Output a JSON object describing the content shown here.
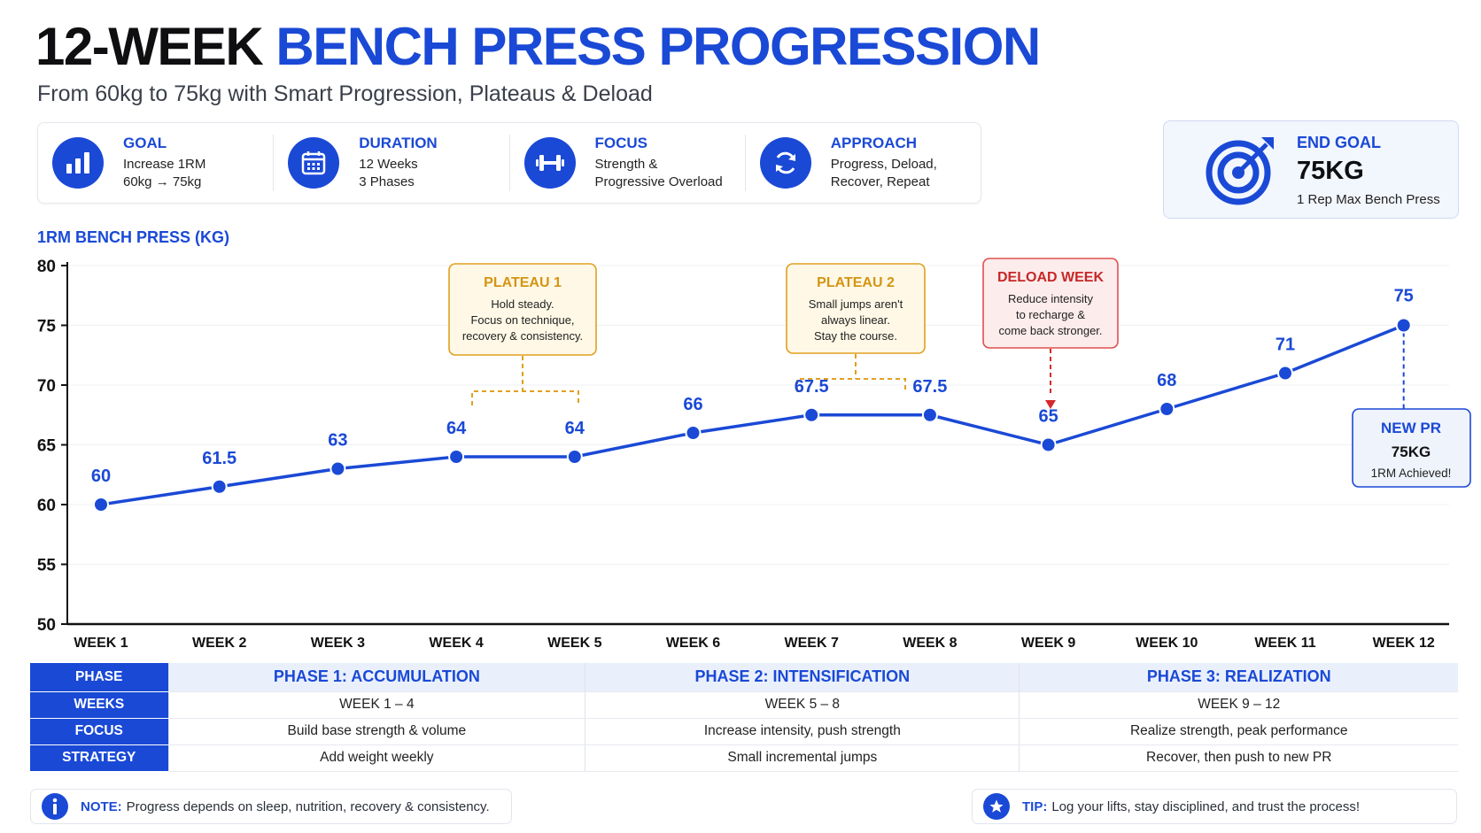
{
  "header": {
    "title_part1": "12-WEEK",
    "title_part2": "BENCH PRESS PROGRESSION",
    "subtitle": "From 60kg to 75kg with Smart Progression, Plateaus & Deload"
  },
  "info": [
    {
      "label": "GOAL",
      "line1": "Increase 1RM",
      "line2": "60kg → 75kg",
      "icon": "bar-chart-icon"
    },
    {
      "label": "DURATION",
      "line1": "12 Weeks",
      "line2": "3 Phases",
      "icon": "calendar-icon"
    },
    {
      "label": "FOCUS",
      "line1": "Strength &",
      "line2": "Progressive Overload",
      "icon": "dumbbell-icon"
    },
    {
      "label": "APPROACH",
      "line1": "Progress, Deload,",
      "line2": "Recover, Repeat",
      "icon": "refresh-icon"
    }
  ],
  "end_goal": {
    "label": "END GOAL",
    "value": "75KG",
    "sub": "1 Rep Max Bench Press",
    "icon": "target-icon"
  },
  "colors": {
    "accent": "#1a49d6",
    "plateau": "#e0a020",
    "deload": "#d52a2a"
  },
  "chart_data": {
    "type": "line",
    "title": "1RM BENCH PRESS (KG)",
    "ylim": [
      50,
      80
    ],
    "yticks": [
      50,
      55,
      60,
      65,
      70,
      75,
      80
    ],
    "grid": true,
    "categories": [
      "WEEK 1",
      "WEEK 2",
      "WEEK 3",
      "WEEK 4",
      "WEEK 5",
      "WEEK 6",
      "WEEK 7",
      "WEEK 8",
      "WEEK 9",
      "WEEK 10",
      "WEEK 11",
      "WEEK 12"
    ],
    "values": [
      60,
      61.5,
      63,
      64,
      64,
      66,
      67.5,
      67.5,
      65,
      68,
      71,
      75
    ],
    "labels": [
      "60",
      "61.5",
      "63",
      "64",
      "64",
      "66",
      "67.5",
      "67.5",
      "65",
      "68",
      "71",
      "75"
    ],
    "annotations": [
      {
        "title": "PLATEAU 1",
        "lines": [
          "Hold steady.",
          "Focus on technique,",
          "recovery & consistency."
        ]
      },
      {
        "title": "PLATEAU 2",
        "lines": [
          "Small jumps aren't",
          "always linear.",
          "Stay the course."
        ]
      },
      {
        "title": "DELOAD WEEK",
        "lines": [
          "Reduce intensity",
          "to recharge &",
          "come back stronger."
        ]
      },
      {
        "title": "NEW PR",
        "lines": [
          "75KG",
          "1RM Achieved!"
        ]
      }
    ]
  },
  "phase_table": {
    "row_headers": [
      "PHASE",
      "WEEKS",
      "FOCUS",
      "STRATEGY"
    ],
    "phases": [
      {
        "name": "PHASE 1: ACCUMULATION",
        "weeks": "WEEK 1 – 4",
        "focus": "Build base strength & volume",
        "strategy": "Add weight weekly"
      },
      {
        "name": "PHASE 2: INTENSIFICATION",
        "weeks": "WEEK 5 – 8",
        "focus": "Increase intensity, push strength",
        "strategy": "Small incremental jumps"
      },
      {
        "name": "PHASE 3: REALIZATION",
        "weeks": "WEEK 9 – 12",
        "focus": "Realize strength, peak performance",
        "strategy": "Recover, then push to new PR"
      }
    ]
  },
  "footer": {
    "note_label": "NOTE:",
    "note_text": "Progress depends on sleep, nutrition, recovery & consistency.",
    "tip_label": "TIP:",
    "tip_text": "Log your lifts, stay disciplined, and trust the process!"
  }
}
